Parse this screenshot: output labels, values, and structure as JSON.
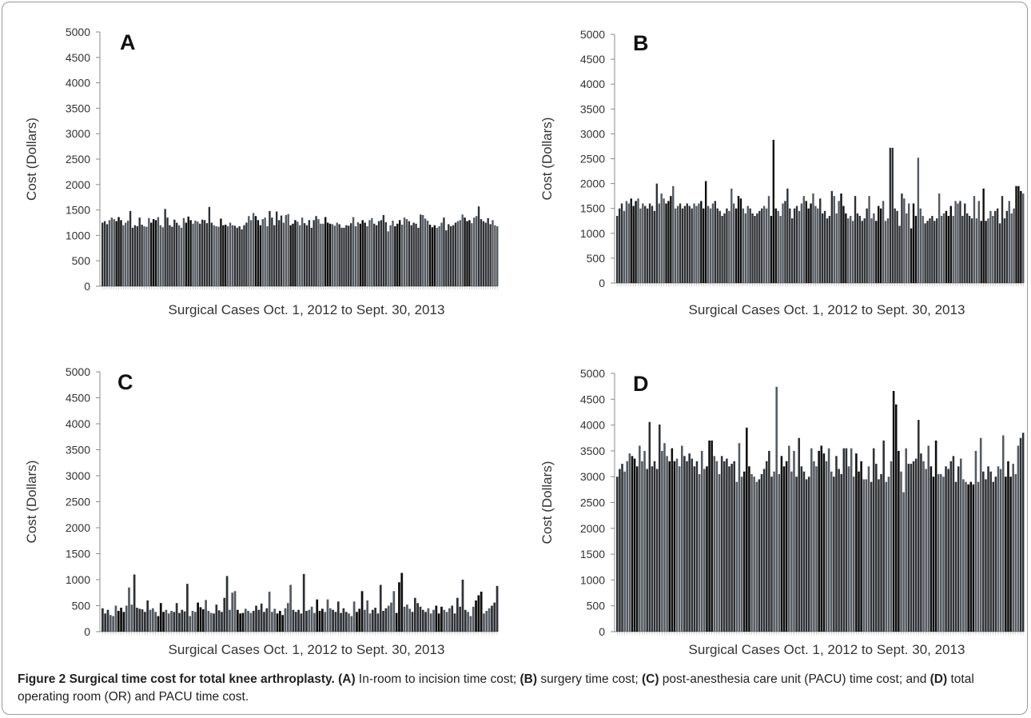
{
  "colors": {
    "bar_dark": "#0d0d0d",
    "bar_mid": "#2e3135",
    "bar_light": "#555a60",
    "axis": "#8a8a8a",
    "text": "#333333"
  },
  "caption": {
    "figure_label": "Figure 2 Surgical time cost for total knee arthroplasty.",
    "parts": [
      {
        "label": "(A)",
        "text": " In-room to incision time cost; "
      },
      {
        "label": "(B)",
        "text": " surgery time cost; "
      },
      {
        "label": "(C)",
        "text": " post-anesthesia care unit (PACU) time cost; and "
      },
      {
        "label": "(D)",
        "text": " total operating room (OR) and PACU time cost."
      }
    ]
  },
  "chart_data": [
    {
      "type": "bar",
      "panel_label": "A",
      "xlabel": "Surgical Cases Oct. 1, 2012 to Sept. 30, 2013",
      "ylabel": "Cost (Dollars)",
      "ylim": [
        0,
        5000
      ],
      "yticks": [
        0,
        500,
        1000,
        1500,
        2000,
        2500,
        3000,
        3500,
        4000,
        4500,
        5000
      ],
      "grid": false,
      "values": [
        1250,
        1280,
        1220,
        1300,
        1350,
        1320,
        1280,
        1360,
        1300,
        1200,
        1250,
        1290,
        1480,
        1150,
        1200,
        1180,
        1350,
        1210,
        1180,
        1170,
        1340,
        1250,
        1320,
        1300,
        1360,
        1200,
        1160,
        1520,
        1350,
        1200,
        1170,
        1310,
        1250,
        1200,
        1150,
        1340,
        1250,
        1370,
        1300,
        1230,
        1290,
        1270,
        1230,
        1310,
        1300,
        1240,
        1560,
        1250,
        1200,
        1180,
        1170,
        1330,
        1200,
        1210,
        1180,
        1250,
        1200,
        1190,
        1150,
        1180,
        1120,
        1200,
        1250,
        1380,
        1300,
        1440,
        1380,
        1300,
        1200,
        1320,
        1350,
        1180,
        1480,
        1350,
        1200,
        1470,
        1300,
        1390,
        1250,
        1400,
        1420,
        1200,
        1230,
        1300,
        1270,
        1200,
        1350,
        1240,
        1200,
        1300,
        1150,
        1300,
        1380,
        1320,
        1230,
        1230,
        1360,
        1250,
        1230,
        1220,
        1190,
        1250,
        1220,
        1150,
        1150,
        1200,
        1190,
        1240,
        1360,
        1180,
        1260,
        1230,
        1300,
        1250,
        1180,
        1300,
        1340,
        1230,
        1200,
        1280,
        1300,
        1400,
        1260,
        1080,
        1200,
        1290,
        1180,
        1230,
        1300,
        1210,
        1350,
        1320,
        1280,
        1200,
        1250,
        1230,
        1150,
        1410,
        1400,
        1330,
        1290,
        1210,
        1160,
        1200,
        1150,
        1180,
        1250,
        1350,
        1100,
        1220,
        1180,
        1200,
        1250,
        1280,
        1300,
        1410,
        1350,
        1280,
        1300,
        1240,
        1350,
        1380,
        1570,
        1320,
        1280,
        1250,
        1340,
        1220,
        1300,
        1200,
        1180
      ]
    },
    {
      "type": "bar",
      "panel_label": "B",
      "xlabel": "Surgical Cases Oct. 1, 2012 to  Sept. 30, 2013",
      "ylabel": "Cost (Dollars)",
      "ylim": [
        0,
        5000
      ],
      "yticks": [
        0,
        500,
        1000,
        1500,
        2000,
        2500,
        3000,
        3500,
        4000,
        4500,
        5000
      ],
      "grid": false,
      "values": [
        1350,
        1500,
        1600,
        1450,
        1650,
        1600,
        1700,
        1550,
        1650,
        1700,
        1500,
        1600,
        1550,
        1500,
        1600,
        1550,
        1450,
        2000,
        1600,
        1800,
        1700,
        1600,
        1650,
        1750,
        1950,
        1500,
        1550,
        1600,
        1500,
        1550,
        1600,
        1550,
        1500,
        1600,
        1550,
        1600,
        1650,
        1500,
        2050,
        1550,
        1500,
        1600,
        1650,
        1500,
        1450,
        1350,
        1400,
        1500,
        1450,
        1900,
        1600,
        1500,
        1750,
        1700,
        1500,
        1400,
        1550,
        1500,
        1400,
        1350,
        1400,
        1450,
        1500,
        1550,
        1500,
        1750,
        1350,
        2880,
        1500,
        1450,
        1350,
        1600,
        1650,
        1900,
        1500,
        1300,
        1500,
        1550,
        1450,
        1600,
        1750,
        1650,
        1500,
        1600,
        1800,
        1550,
        1500,
        1700,
        1400,
        1450,
        1300,
        1350,
        1850,
        1750,
        1400,
        1650,
        1800,
        1550,
        1400,
        1300,
        1350,
        1250,
        1750,
        1400,
        1350,
        1250,
        1300,
        1500,
        1750,
        1300,
        1400,
        1250,
        1550,
        1500,
        1650,
        1250,
        1300,
        2720,
        2720,
        1500,
        1450,
        1150,
        1800,
        1700,
        1400,
        1600,
        1100,
        1600,
        1350,
        2520,
        1500,
        1350,
        1200,
        1250,
        1300,
        1350,
        1250,
        1300,
        1800,
        1350,
        1400,
        1450,
        1350,
        1550,
        1350,
        1650,
        1600,
        1650,
        1350,
        1600,
        1400,
        1350,
        1300,
        1750,
        1300,
        1650,
        1250,
        1900,
        1250,
        1300,
        1450,
        1350,
        1450,
        1500,
        1200,
        1750,
        1300,
        1450,
        1650,
        1400,
        1500,
        1950,
        1950,
        1850,
        1800
      ]
    },
    {
      "type": "bar",
      "panel_label": "C",
      "xlabel": "Surgical Cases Oct. 1, 2012 to Sept. 30, 2013",
      "ylabel": "Cost (Dollars)",
      "ylim": [
        0,
        5000
      ],
      "yticks": [
        0,
        500,
        1000,
        1500,
        2000,
        2500,
        3000,
        3500,
        4000,
        4500,
        5000
      ],
      "grid": false,
      "values": [
        450,
        350,
        420,
        320,
        300,
        500,
        400,
        460,
        380,
        500,
        850,
        520,
        1100,
        460,
        440,
        430,
        380,
        600,
        420,
        450,
        380,
        300,
        550,
        380,
        420,
        350,
        400,
        380,
        550,
        360,
        420,
        390,
        920,
        300,
        400,
        380,
        560,
        470,
        430,
        610,
        400,
        360,
        350,
        520,
        410,
        380,
        650,
        1070,
        420,
        750,
        780,
        420,
        350,
        360,
        440,
        400,
        360,
        400,
        500,
        420,
        540,
        380,
        450,
        770,
        380,
        440,
        350,
        400,
        320,
        450,
        550,
        900,
        420,
        380,
        420,
        350,
        1110,
        400,
        420,
        480,
        360,
        620,
        400,
        440,
        380,
        620,
        450,
        420,
        380,
        580,
        360,
        450,
        380,
        350,
        300,
        580,
        380,
        440,
        780,
        420,
        600,
        350,
        420,
        460,
        350,
        900,
        400,
        450,
        500,
        560,
        780,
        360,
        950,
        1130,
        480,
        520,
        440,
        380,
        650,
        550,
        480,
        420,
        380,
        450,
        350,
        420,
        500,
        350,
        480,
        420,
        380,
        450,
        500,
        350,
        650,
        480,
        1000,
        420,
        380,
        300,
        480,
        600,
        700,
        770,
        350,
        400,
        450,
        500,
        560,
        880
      ]
    },
    {
      "type": "bar",
      "panel_label": "D",
      "xlabel": "Surgical Cases Oct. 1, 2012 to Sept. 30, 2013",
      "ylabel": "Cost (Dollars)",
      "ylim": [
        0,
        5000
      ],
      "yticks": [
        0,
        500,
        1000,
        1500,
        2000,
        2500,
        3000,
        3500,
        4000,
        4500,
        5000
      ],
      "grid": false,
      "values": [
        3000,
        3150,
        3250,
        3100,
        3300,
        3450,
        3400,
        3350,
        3200,
        3600,
        3300,
        3500,
        3150,
        4060,
        3200,
        3300,
        3150,
        4010,
        3500,
        3650,
        3400,
        3300,
        3550,
        3300,
        3350,
        3200,
        3600,
        3400,
        3300,
        3450,
        3350,
        3200,
        3300,
        3050,
        3500,
        3150,
        3200,
        3700,
        3700,
        3400,
        3300,
        3050,
        3400,
        3300,
        3350,
        3200,
        3250,
        3300,
        2900,
        3650,
        3000,
        3100,
        3950,
        3200,
        3050,
        3000,
        2900,
        2950,
        3050,
        3150,
        3300,
        3500,
        3000,
        3100,
        4740,
        3050,
        3400,
        3200,
        3300,
        3600,
        3100,
        3500,
        3000,
        3750,
        3200,
        3100,
        2950,
        3000,
        3550,
        3300,
        3200,
        3500,
        3600,
        3450,
        3300,
        3550,
        3100,
        3000,
        3400,
        3150,
        3050,
        3550,
        3550,
        3200,
        3550,
        3000,
        3450,
        3100,
        3300,
        2950,
        2950,
        3200,
        2900,
        3550,
        3250,
        2950,
        3050,
        3700,
        2900,
        3000,
        3300,
        4660,
        4400,
        3500,
        3100,
        2700,
        3550,
        3250,
        3250,
        3300,
        3350,
        4100,
        3450,
        3300,
        3150,
        3600,
        3200,
        3000,
        3700,
        3050,
        3050,
        3000,
        3200,
        3150,
        3300,
        3400,
        2900,
        3200,
        3350,
        2950,
        2900,
        2850,
        2900,
        2850,
        3500,
        2900,
        3750,
        3100,
        2950,
        3200,
        3100,
        2900,
        3000,
        3200,
        3150,
        3800,
        3000,
        3300,
        3000,
        3250,
        3050,
        3600,
        3750,
        3850
      ]
    }
  ]
}
